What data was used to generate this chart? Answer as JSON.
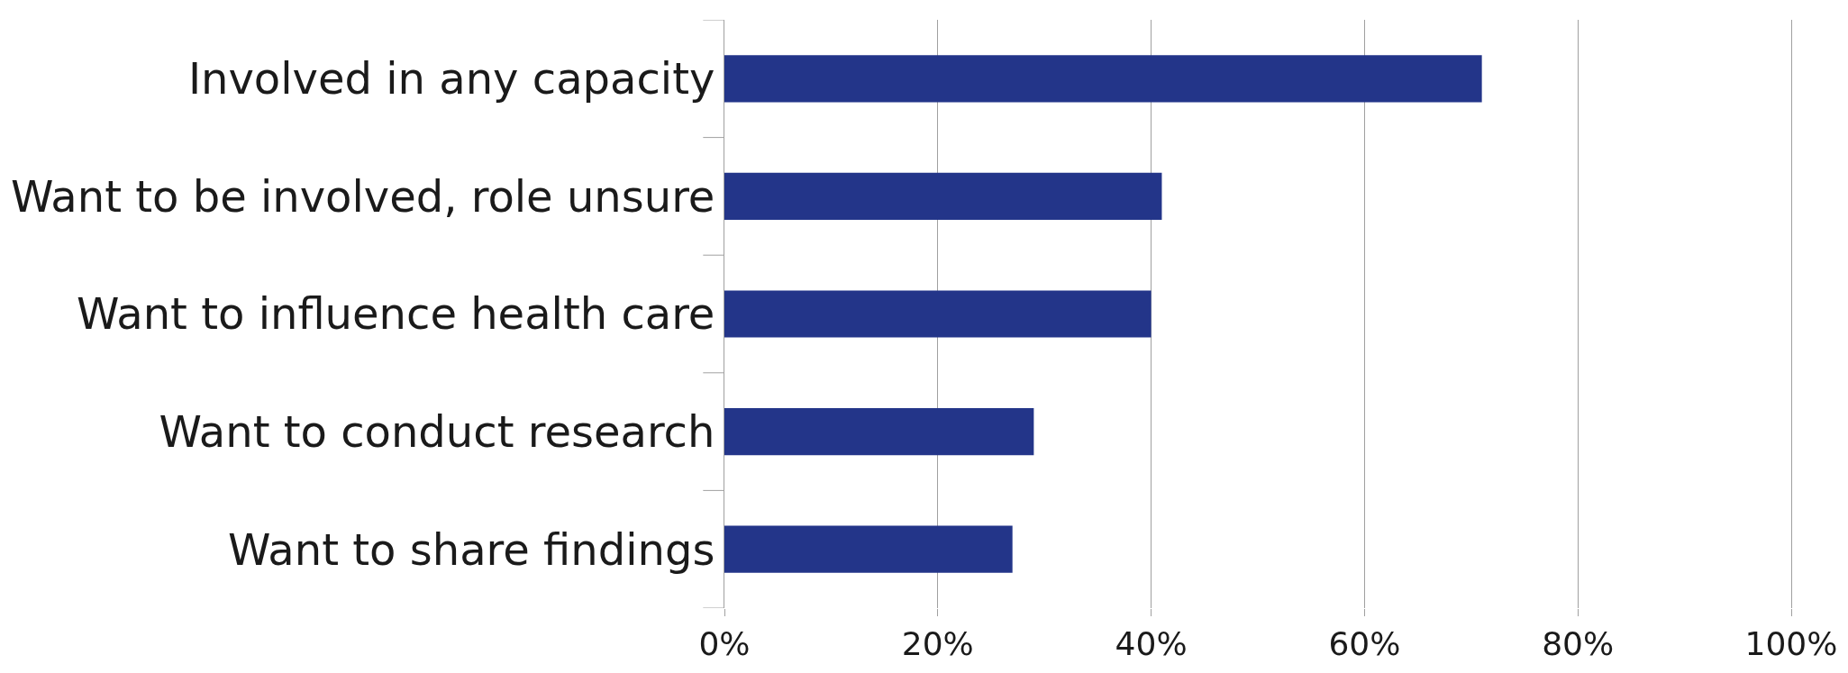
{
  "chart_data": {
    "type": "bar",
    "orientation": "horizontal",
    "categories": [
      "Involved in any capacity",
      "Want to be involved, role unsure",
      "Want to influence health care",
      "Want to conduct research",
      "Want to share findings"
    ],
    "values": [
      71,
      41,
      40,
      29,
      27
    ],
    "color": "#233589",
    "xlim": [
      0,
      100
    ],
    "xticks": [
      {
        "value": 0,
        "label": "0%"
      },
      {
        "value": 20,
        "label": "20%"
      },
      {
        "value": 40,
        "label": "40%"
      },
      {
        "value": 60,
        "label": "60%"
      },
      {
        "value": 80,
        "label": "80%"
      },
      {
        "value": 100,
        "label": "100%"
      }
    ],
    "grid": "x"
  }
}
